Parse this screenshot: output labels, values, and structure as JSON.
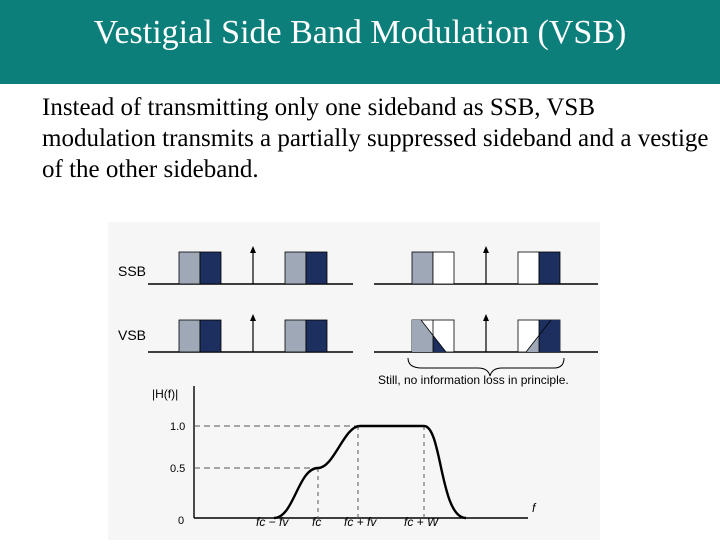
{
  "header": {
    "title": "Vestigial Side Band Modulation (VSB)"
  },
  "body": {
    "text": "Instead of transmitting only one sideband as SSB, VSB modulation transmits a partially suppressed sideband and a vestige of the other sideband."
  },
  "figure": {
    "rows": {
      "ssb_label": "SSB",
      "vsb_label": "VSB"
    },
    "note": "Still, no information loss in principle.",
    "filter_plot": {
      "y_axis_label": "|H(f)|",
      "x_axis_label": "f",
      "y_ticks": [
        "1.0",
        "0.5",
        "0"
      ],
      "x_ticks": [
        "fc − fv",
        "fc",
        "fc + fv",
        "fc + W"
      ]
    },
    "colors": {
      "sideband_dark": "#1c2f5e",
      "sideband_light": "#9ea8b6",
      "title_bar": "#0d7f7b"
    }
  },
  "chart_data": {
    "type": "line",
    "title": "",
    "xlabel": "f",
    "ylabel": "|H(f)|",
    "ylim": [
      0,
      1
    ],
    "x_categories": [
      "fc − fv",
      "fc",
      "fc + fv",
      "fc + W"
    ],
    "series": [
      {
        "name": "",
        "points": [
          {
            "x": "fc − fv",
            "y": 0
          },
          {
            "x": "fc",
            "y": 0.5
          },
          {
            "x": "fc + fv",
            "y": 1.0
          },
          {
            "x": "fc + W",
            "y": 1.0
          }
        ]
      }
    ]
  }
}
